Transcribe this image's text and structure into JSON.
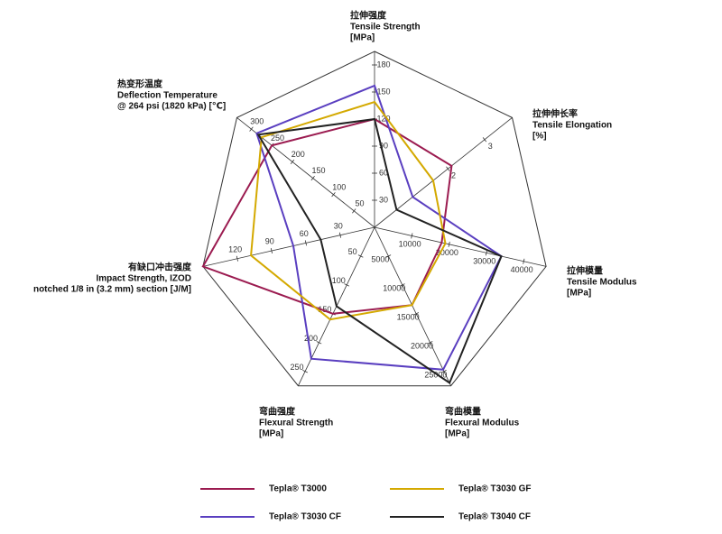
{
  "chart_data": {
    "type": "radar",
    "axes": [
      {
        "label": [
          "拉伸强度",
          "Tensile Strength",
          "[MPa]"
        ],
        "lim": [
          0,
          195
        ],
        "ticks": [
          30,
          60,
          90,
          120,
          150,
          180
        ]
      },
      {
        "label": [
          "拉伸伸长率",
          "Tensile Elongation",
          "[%]"
        ],
        "lim": [
          0,
          3.75
        ],
        "ticks": [
          2,
          3
        ]
      },
      {
        "label": [
          "拉伸模量",
          "Tensile Modulus",
          "[MPa]"
        ],
        "lim": [
          0,
          46000
        ],
        "ticks": [
          10000,
          20000,
          30000,
          40000
        ]
      },
      {
        "label": [
          "弯曲模量",
          "Flexural Modulus",
          "[MPa]"
        ],
        "lim": [
          0,
          27500
        ],
        "ticks": [
          5000,
          10000,
          15000,
          20000,
          25000
        ]
      },
      {
        "label": [
          "弯曲强度",
          "Flexural Strength",
          "[MPa]"
        ],
        "lim": [
          0,
          275
        ],
        "ticks": [
          50,
          100,
          150,
          200,
          250
        ]
      },
      {
        "label": [
          "有缺口冲击强度",
          "Impact Strength, IZOD",
          "notched 1/8 in (3.2 mm) section [J/M]"
        ],
        "lim": [
          0,
          150
        ],
        "ticks": [
          30,
          60,
          90,
          120
        ]
      },
      {
        "label": [
          "热变形温度",
          "Deflection Temperature",
          "@ 264 psi (1820 kPa) [℃]"
        ],
        "lim": [
          0,
          335
        ],
        "ticks": [
          50,
          100,
          150,
          200,
          250,
          300
        ]
      }
    ],
    "series": [
      {
        "name": "Tepla® T3000",
        "color": "#9b1b50",
        "values": [
          120,
          2.1,
          18000,
          13500,
          150,
          150,
          250
        ]
      },
      {
        "name": "Tepla® T3030 CF",
        "color": "#5a3fc0",
        "values": [
          157,
          1.04,
          34000,
          24700,
          228,
          71,
          287
        ]
      },
      {
        "name": "Tepla® T3030 GF",
        "color": "#d4a900",
        "values": [
          139,
          1.6,
          19000,
          13500,
          160,
          108,
          275
        ]
      },
      {
        "name": "Tepla® T3040 CF",
        "color": "#222222",
        "values": [
          120,
          0.6,
          34000,
          27000,
          137,
          47,
          283
        ]
      }
    ]
  }
}
